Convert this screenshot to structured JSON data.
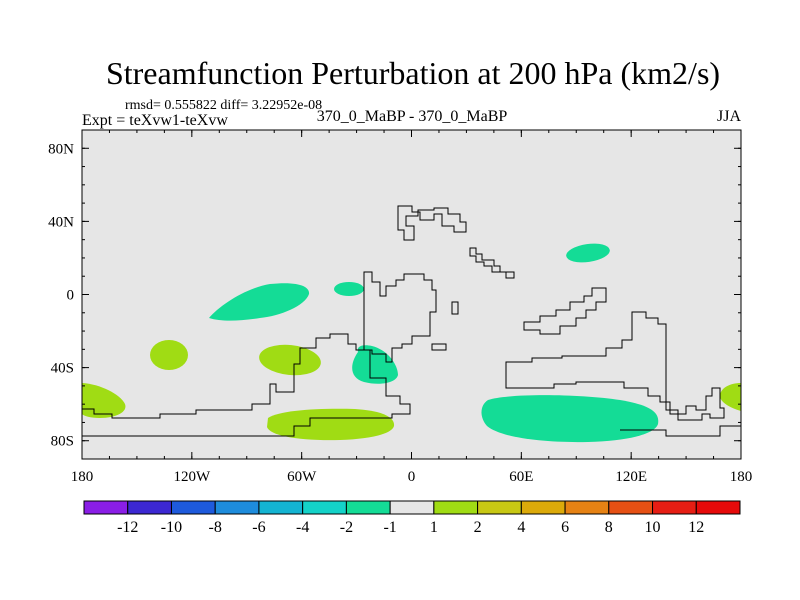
{
  "chart_data": {
    "type": "heatmap",
    "title": "Streamfunction Perturbation at 200 hPa (km2/s)",
    "stats": "rmsd= 0.555822 diff= 3.22952e-08",
    "left_label": "Expt = teXvw1-teXvw",
    "center_label": "370_0_MaBP - 370_0_MaBP",
    "right_label": "JJA",
    "x_axis": {
      "range": [
        -180,
        180
      ],
      "ticks": [
        {
          "value": -180,
          "label": "180"
        },
        {
          "value": -120,
          "label": "120W"
        },
        {
          "value": -60,
          "label": "60W"
        },
        {
          "value": 0,
          "label": "0"
        },
        {
          "value": 60,
          "label": "60E"
        },
        {
          "value": 120,
          "label": "120E"
        },
        {
          "value": 180,
          "label": "180"
        }
      ]
    },
    "y_axis": {
      "range": [
        -90,
        90
      ],
      "ticks": [
        {
          "value": 80,
          "label": "80N"
        },
        {
          "value": 40,
          "label": "40N"
        },
        {
          "value": 0,
          "label": "0"
        },
        {
          "value": -40,
          "label": "40S"
        },
        {
          "value": -80,
          "label": "80S"
        }
      ]
    },
    "background_color": "#e6e6e6",
    "colorbar": {
      "labels": [
        "-12",
        "-10",
        "-8",
        "-6",
        "-4",
        "-2",
        "-1",
        "1",
        "2",
        "4",
        "6",
        "8",
        "10",
        "12"
      ],
      "colors": [
        "#8a1ee6",
        "#3c28d2",
        "#1e5adc",
        "#1e8cdc",
        "#14b4d2",
        "#14d2c8",
        "#14dc96",
        "#e6e6e6",
        "#a0dc14",
        "#c8c814",
        "#dcaa0a",
        "#e68214",
        "#e65014",
        "#e61e14",
        "#e60a0a"
      ]
    },
    "features": [
      {
        "name": "negative-anomaly-1",
        "level": "-2 to -1",
        "color": "#14dc96",
        "lon": -85,
        "lat": 0
      },
      {
        "name": "negative-anomaly-2",
        "level": "-2 to -1",
        "color": "#14dc96",
        "lon": -35,
        "lat": 3
      },
      {
        "name": "negative-anomaly-3",
        "level": "-2 to -1",
        "color": "#14dc96",
        "lon": 100,
        "lat": 23
      },
      {
        "name": "negative-anomaly-4",
        "level": "-2 to -1",
        "color": "#14dc96",
        "lon": -20,
        "lat": -37
      },
      {
        "name": "negative-anomaly-5",
        "level": "-2 to -1",
        "color": "#14dc96",
        "lon": 85,
        "lat": -68
      },
      {
        "name": "positive-anomaly-1",
        "level": "1 to 2",
        "color": "#a0dc14",
        "lon": -135,
        "lat": -32
      },
      {
        "name": "positive-anomaly-2",
        "level": "1 to 2",
        "color": "#a0dc14",
        "lon": -67,
        "lat": -35
      },
      {
        "name": "positive-anomaly-3",
        "level": "1 to 2",
        "color": "#a0dc14",
        "lon": -168,
        "lat": -58
      },
      {
        "name": "positive-anomaly-4",
        "level": "1 to 2",
        "color": "#a0dc14",
        "lon": 177,
        "lat": -55
      },
      {
        "name": "positive-anomaly-5",
        "level": "1 to 2",
        "color": "#a0dc14",
        "lon": -60,
        "lat": -70
      }
    ]
  }
}
